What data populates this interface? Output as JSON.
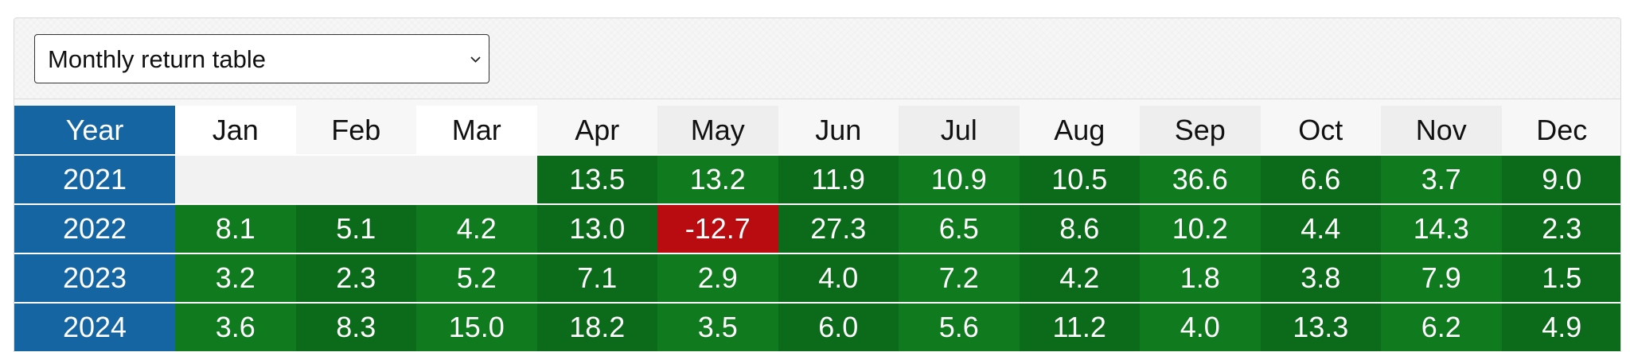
{
  "selector": {
    "label": "Monthly return table",
    "icon": "chevron-down-icon"
  },
  "table": {
    "year_header": "Year",
    "months": [
      {
        "label": "Jan",
        "bg": "#ffffff"
      },
      {
        "label": "Feb",
        "bg": "#f7f7f7"
      },
      {
        "label": "Mar",
        "bg": "#ffffff"
      },
      {
        "label": "Apr",
        "bg": "#f7f7f7"
      },
      {
        "label": "May",
        "bg": "#eeeeee"
      },
      {
        "label": "Jun",
        "bg": "#f7f7f7"
      },
      {
        "label": "Jul",
        "bg": "#eeeeee"
      },
      {
        "label": "Aug",
        "bg": "#f7f7f7"
      },
      {
        "label": "Sep",
        "bg": "#eeeeee"
      },
      {
        "label": "Oct",
        "bg": "#f7f7f7"
      },
      {
        "label": "Nov",
        "bg": "#eeeeee"
      },
      {
        "label": "Dec",
        "bg": "#f7f7f7"
      }
    ],
    "rows": [
      {
        "year": "2021",
        "cells": [
          {
            "value": "",
            "bg": "#f2f2f2"
          },
          {
            "value": "",
            "bg": "#f2f2f2"
          },
          {
            "value": "",
            "bg": "#f2f2f2"
          },
          {
            "value": "13.5",
            "bg": "#0c6b1a"
          },
          {
            "value": "13.2",
            "bg": "#107a1f"
          },
          {
            "value": "11.9",
            "bg": "#0c6b1a"
          },
          {
            "value": "10.9",
            "bg": "#107a1f"
          },
          {
            "value": "10.5",
            "bg": "#0c6b1a"
          },
          {
            "value": "36.6",
            "bg": "#107a1f"
          },
          {
            "value": "6.6",
            "bg": "#0c6b1a"
          },
          {
            "value": "3.7",
            "bg": "#107a1f"
          },
          {
            "value": "9.0",
            "bg": "#0c6b1a"
          }
        ]
      },
      {
        "year": "2022",
        "cells": [
          {
            "value": "8.1",
            "bg": "#107a1f"
          },
          {
            "value": "5.1",
            "bg": "#0c6b1a"
          },
          {
            "value": "4.2",
            "bg": "#107a1f"
          },
          {
            "value": "13.0",
            "bg": "#0c6b1a"
          },
          {
            "value": "-12.7",
            "bg": "#b80c10"
          },
          {
            "value": "27.3",
            "bg": "#0c6b1a"
          },
          {
            "value": "6.5",
            "bg": "#107a1f"
          },
          {
            "value": "8.6",
            "bg": "#0c6b1a"
          },
          {
            "value": "10.2",
            "bg": "#107a1f"
          },
          {
            "value": "4.4",
            "bg": "#0c6b1a"
          },
          {
            "value": "14.3",
            "bg": "#107a1f"
          },
          {
            "value": "2.3",
            "bg": "#0c6b1a"
          }
        ]
      },
      {
        "year": "2023",
        "cells": [
          {
            "value": "3.2",
            "bg": "#107a1f"
          },
          {
            "value": "2.3",
            "bg": "#0c6b1a"
          },
          {
            "value": "5.2",
            "bg": "#107a1f"
          },
          {
            "value": "7.1",
            "bg": "#0c6b1a"
          },
          {
            "value": "2.9",
            "bg": "#107a1f"
          },
          {
            "value": "4.0",
            "bg": "#0c6b1a"
          },
          {
            "value": "7.2",
            "bg": "#107a1f"
          },
          {
            "value": "4.2",
            "bg": "#0c6b1a"
          },
          {
            "value": "1.8",
            "bg": "#107a1f"
          },
          {
            "value": "3.8",
            "bg": "#0c6b1a"
          },
          {
            "value": "7.9",
            "bg": "#107a1f"
          },
          {
            "value": "1.5",
            "bg": "#0c6b1a"
          }
        ]
      },
      {
        "year": "2024",
        "cells": [
          {
            "value": "3.6",
            "bg": "#107a1f"
          },
          {
            "value": "8.3",
            "bg": "#0c6b1a"
          },
          {
            "value": "15.0",
            "bg": "#107a1f"
          },
          {
            "value": "18.2",
            "bg": "#0c6b1a"
          },
          {
            "value": "3.5",
            "bg": "#107a1f"
          },
          {
            "value": "6.0",
            "bg": "#0c6b1a"
          },
          {
            "value": "5.6",
            "bg": "#107a1f"
          },
          {
            "value": "11.2",
            "bg": "#0c6b1a"
          },
          {
            "value": "4.0",
            "bg": "#107a1f"
          },
          {
            "value": "13.3",
            "bg": "#0c6b1a"
          },
          {
            "value": "6.2",
            "bg": "#107a1f"
          },
          {
            "value": "4.9",
            "bg": "#0c6b1a"
          }
        ]
      }
    ]
  },
  "colors": {
    "year_column": "#1565a3",
    "positive_dark": "#0c6b1a",
    "positive": "#107a1f",
    "negative": "#b80c10",
    "empty": "#f2f2f2"
  }
}
